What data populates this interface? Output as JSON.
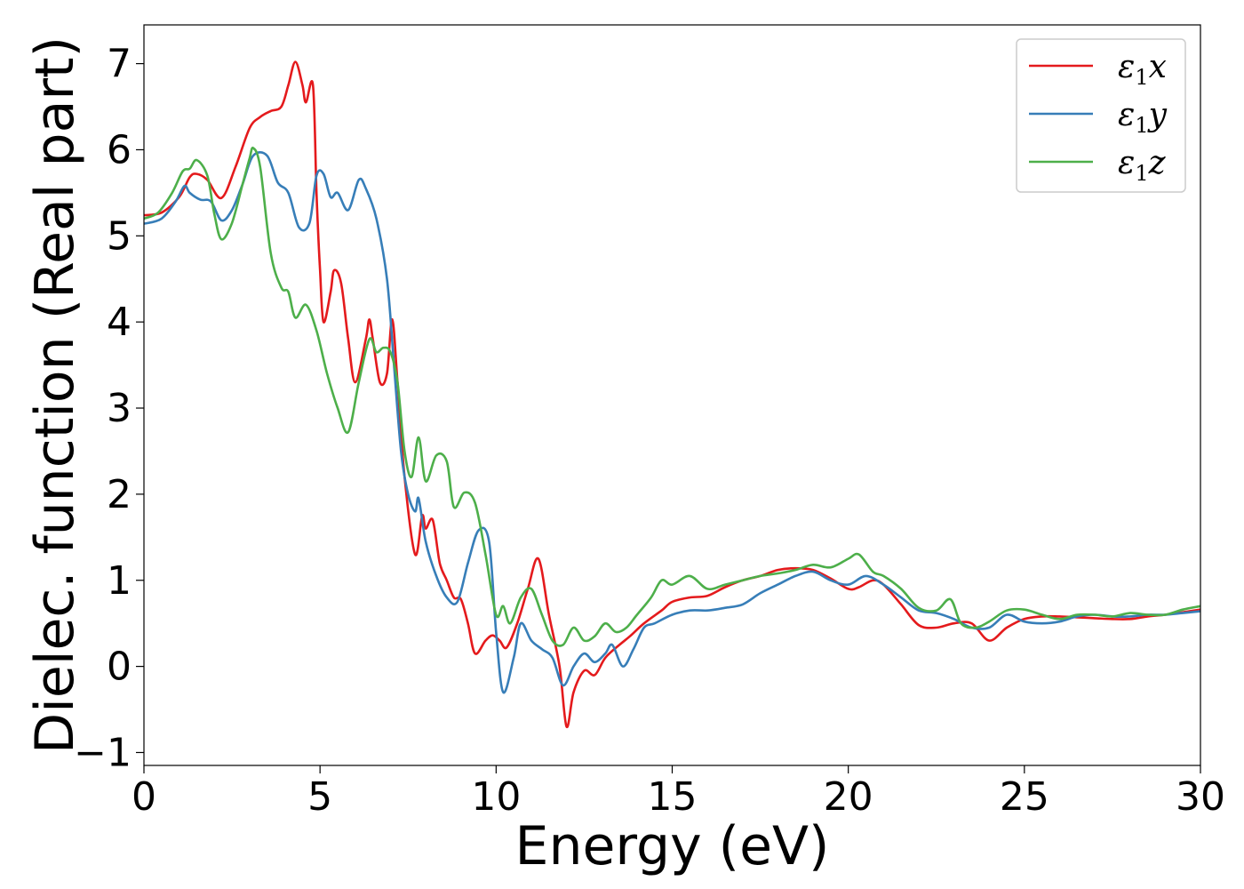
{
  "chart_data": {
    "type": "line",
    "xlabel": "Energy (eV)",
    "ylabel": "Dielec. function (Real part)",
    "xlim": [
      0,
      30
    ],
    "ylim": [
      -1.15,
      7.45
    ],
    "xticks": [
      0,
      5,
      10,
      15,
      20,
      25,
      30
    ],
    "xtick_labels": [
      "0",
      "5",
      "10",
      "15",
      "20",
      "25",
      "30"
    ],
    "yticks": [
      -1,
      0,
      1,
      2,
      3,
      4,
      5,
      6,
      7
    ],
    "ytick_labels": [
      "−1",
      "0",
      "1",
      "2",
      "3",
      "4",
      "5",
      "6",
      "7"
    ],
    "grid": false,
    "legend_position": "top-right",
    "series": [
      {
        "name": "ε1x",
        "symbol": "ε",
        "subscript": "1",
        "axis": "x",
        "color": "#e41a1c",
        "points": [
          [
            0,
            5.24
          ],
          [
            0.5,
            5.27
          ],
          [
            1.0,
            5.45
          ],
          [
            1.3,
            5.68
          ],
          [
            1.5,
            5.72
          ],
          [
            1.8,
            5.65
          ],
          [
            2.2,
            5.44
          ],
          [
            2.6,
            5.8
          ],
          [
            3.0,
            6.25
          ],
          [
            3.3,
            6.38
          ],
          [
            3.6,
            6.45
          ],
          [
            3.9,
            6.5
          ],
          [
            4.1,
            6.75
          ],
          [
            4.3,
            7.02
          ],
          [
            4.5,
            6.75
          ],
          [
            4.6,
            6.55
          ],
          [
            4.8,
            6.75
          ],
          [
            4.9,
            5.5
          ],
          [
            5.0,
            4.6
          ],
          [
            5.1,
            4.0
          ],
          [
            5.3,
            4.35
          ],
          [
            5.4,
            4.6
          ],
          [
            5.6,
            4.45
          ],
          [
            5.8,
            3.8
          ],
          [
            6.0,
            3.3
          ],
          [
            6.3,
            3.8
          ],
          [
            6.4,
            4.03
          ],
          [
            6.5,
            3.8
          ],
          [
            6.7,
            3.3
          ],
          [
            6.9,
            3.4
          ],
          [
            7.05,
            4.03
          ],
          [
            7.2,
            3.3
          ],
          [
            7.4,
            2.2
          ],
          [
            7.7,
            1.3
          ],
          [
            7.9,
            1.75
          ],
          [
            8.0,
            1.6
          ],
          [
            8.2,
            1.7
          ],
          [
            8.4,
            1.2
          ],
          [
            8.6,
            1.0
          ],
          [
            8.8,
            0.8
          ],
          [
            9.0,
            0.78
          ],
          [
            9.2,
            0.5
          ],
          [
            9.4,
            0.15
          ],
          [
            9.7,
            0.3
          ],
          [
            9.9,
            0.36
          ],
          [
            10.1,
            0.3
          ],
          [
            10.3,
            0.22
          ],
          [
            10.6,
            0.5
          ],
          [
            10.9,
            0.9
          ],
          [
            11.2,
            1.25
          ],
          [
            11.5,
            0.6
          ],
          [
            11.8,
            0.0
          ],
          [
            12.0,
            -0.7
          ],
          [
            12.2,
            -0.3
          ],
          [
            12.5,
            -0.05
          ],
          [
            12.8,
            -0.1
          ],
          [
            13.1,
            0.1
          ],
          [
            13.5,
            0.25
          ],
          [
            13.8,
            0.35
          ],
          [
            14.2,
            0.5
          ],
          [
            14.7,
            0.65
          ],
          [
            15.0,
            0.75
          ],
          [
            15.5,
            0.8
          ],
          [
            16.0,
            0.82
          ],
          [
            16.5,
            0.92
          ],
          [
            17.0,
            1.0
          ],
          [
            17.5,
            1.05
          ],
          [
            18.0,
            1.12
          ],
          [
            18.5,
            1.14
          ],
          [
            19.0,
            1.12
          ],
          [
            19.5,
            1.02
          ],
          [
            20.0,
            0.9
          ],
          [
            20.3,
            0.92
          ],
          [
            20.7,
            1.0
          ],
          [
            21.0,
            0.95
          ],
          [
            21.5,
            0.72
          ],
          [
            22.0,
            0.48
          ],
          [
            22.5,
            0.45
          ],
          [
            23.0,
            0.5
          ],
          [
            23.5,
            0.5
          ],
          [
            24.0,
            0.3
          ],
          [
            24.5,
            0.45
          ],
          [
            25.0,
            0.55
          ],
          [
            25.5,
            0.58
          ],
          [
            26.0,
            0.58
          ],
          [
            26.5,
            0.57
          ],
          [
            27.0,
            0.56
          ],
          [
            27.5,
            0.55
          ],
          [
            28.0,
            0.55
          ],
          [
            28.5,
            0.58
          ],
          [
            29.0,
            0.6
          ],
          [
            29.5,
            0.63
          ],
          [
            30.0,
            0.66
          ]
        ]
      },
      {
        "name": "ε1y",
        "symbol": "ε",
        "subscript": "1",
        "axis": "y",
        "color": "#377eb8",
        "points": [
          [
            0,
            5.14
          ],
          [
            0.5,
            5.2
          ],
          [
            0.9,
            5.4
          ],
          [
            1.15,
            5.58
          ],
          [
            1.3,
            5.5
          ],
          [
            1.6,
            5.42
          ],
          [
            1.9,
            5.4
          ],
          [
            2.2,
            5.18
          ],
          [
            2.5,
            5.3
          ],
          [
            2.8,
            5.6
          ],
          [
            3.1,
            5.93
          ],
          [
            3.5,
            5.93
          ],
          [
            3.8,
            5.62
          ],
          [
            4.1,
            5.5
          ],
          [
            4.4,
            5.1
          ],
          [
            4.7,
            5.15
          ],
          [
            4.9,
            5.7
          ],
          [
            5.1,
            5.72
          ],
          [
            5.3,
            5.45
          ],
          [
            5.5,
            5.5
          ],
          [
            5.8,
            5.3
          ],
          [
            6.1,
            5.65
          ],
          [
            6.3,
            5.55
          ],
          [
            6.6,
            5.2
          ],
          [
            6.9,
            4.5
          ],
          [
            7.1,
            3.5
          ],
          [
            7.3,
            2.5
          ],
          [
            7.5,
            2.0
          ],
          [
            7.7,
            1.8
          ],
          [
            7.8,
            1.95
          ],
          [
            8.0,
            1.45
          ],
          [
            8.3,
            1.05
          ],
          [
            8.6,
            0.8
          ],
          [
            8.9,
            0.75
          ],
          [
            9.2,
            1.2
          ],
          [
            9.5,
            1.58
          ],
          [
            9.8,
            1.45
          ],
          [
            10.0,
            0.4
          ],
          [
            10.2,
            -0.3
          ],
          [
            10.5,
            0.1
          ],
          [
            10.7,
            0.5
          ],
          [
            11.0,
            0.3
          ],
          [
            11.3,
            0.2
          ],
          [
            11.6,
            0.1
          ],
          [
            11.9,
            -0.22
          ],
          [
            12.2,
            0.0
          ],
          [
            12.5,
            0.15
          ],
          [
            12.8,
            0.05
          ],
          [
            13.1,
            0.15
          ],
          [
            13.3,
            0.25
          ],
          [
            13.6,
            0.0
          ],
          [
            13.9,
            0.2
          ],
          [
            14.2,
            0.45
          ],
          [
            14.5,
            0.5
          ],
          [
            15.0,
            0.6
          ],
          [
            15.5,
            0.65
          ],
          [
            16.0,
            0.65
          ],
          [
            16.5,
            0.68
          ],
          [
            17.0,
            0.72
          ],
          [
            17.5,
            0.85
          ],
          [
            18.0,
            0.95
          ],
          [
            18.5,
            1.05
          ],
          [
            19.0,
            1.1
          ],
          [
            19.5,
            1.0
          ],
          [
            20.0,
            0.95
          ],
          [
            20.5,
            1.05
          ],
          [
            21.0,
            0.95
          ],
          [
            21.5,
            0.8
          ],
          [
            22.0,
            0.65
          ],
          [
            22.5,
            0.62
          ],
          [
            23.0,
            0.55
          ],
          [
            23.5,
            0.45
          ],
          [
            24.0,
            0.45
          ],
          [
            24.5,
            0.6
          ],
          [
            25.0,
            0.52
          ],
          [
            25.5,
            0.5
          ],
          [
            26.0,
            0.52
          ],
          [
            26.5,
            0.58
          ],
          [
            27.0,
            0.6
          ],
          [
            27.5,
            0.58
          ],
          [
            28.0,
            0.58
          ],
          [
            28.5,
            0.6
          ],
          [
            29.0,
            0.6
          ],
          [
            29.5,
            0.62
          ],
          [
            30.0,
            0.64
          ]
        ]
      },
      {
        "name": "ε1z",
        "symbol": "ε",
        "subscript": "1",
        "axis": "z",
        "color": "#4daf4a",
        "points": [
          [
            0,
            5.2
          ],
          [
            0.4,
            5.27
          ],
          [
            0.8,
            5.5
          ],
          [
            1.1,
            5.75
          ],
          [
            1.3,
            5.78
          ],
          [
            1.5,
            5.88
          ],
          [
            1.8,
            5.7
          ],
          [
            2.0,
            5.25
          ],
          [
            2.2,
            4.96
          ],
          [
            2.5,
            5.15
          ],
          [
            2.8,
            5.6
          ],
          [
            3.0,
            5.9
          ],
          [
            3.1,
            6.02
          ],
          [
            3.3,
            5.8
          ],
          [
            3.6,
            4.8
          ],
          [
            3.9,
            4.4
          ],
          [
            4.1,
            4.35
          ],
          [
            4.3,
            4.05
          ],
          [
            4.6,
            4.2
          ],
          [
            4.9,
            3.9
          ],
          [
            5.2,
            3.4
          ],
          [
            5.5,
            3.0
          ],
          [
            5.8,
            2.72
          ],
          [
            6.1,
            3.3
          ],
          [
            6.4,
            3.8
          ],
          [
            6.6,
            3.65
          ],
          [
            6.8,
            3.7
          ],
          [
            7.0,
            3.65
          ],
          [
            7.2,
            3.3
          ],
          [
            7.4,
            2.5
          ],
          [
            7.6,
            2.2
          ],
          [
            7.8,
            2.66
          ],
          [
            8.0,
            2.15
          ],
          [
            8.3,
            2.45
          ],
          [
            8.6,
            2.38
          ],
          [
            8.8,
            1.85
          ],
          [
            9.1,
            2.02
          ],
          [
            9.4,
            1.9
          ],
          [
            9.7,
            1.3
          ],
          [
            10.0,
            0.6
          ],
          [
            10.2,
            0.7
          ],
          [
            10.4,
            0.5
          ],
          [
            10.7,
            0.8
          ],
          [
            11.0,
            0.9
          ],
          [
            11.3,
            0.6
          ],
          [
            11.6,
            0.3
          ],
          [
            11.9,
            0.25
          ],
          [
            12.2,
            0.45
          ],
          [
            12.5,
            0.3
          ],
          [
            12.8,
            0.35
          ],
          [
            13.1,
            0.5
          ],
          [
            13.4,
            0.4
          ],
          [
            13.7,
            0.45
          ],
          [
            14.0,
            0.6
          ],
          [
            14.4,
            0.8
          ],
          [
            14.7,
            1.0
          ],
          [
            15.0,
            0.95
          ],
          [
            15.5,
            1.05
          ],
          [
            16.0,
            0.9
          ],
          [
            16.5,
            0.95
          ],
          [
            17.0,
            1.0
          ],
          [
            17.5,
            1.05
          ],
          [
            18.0,
            1.08
          ],
          [
            18.5,
            1.12
          ],
          [
            19.0,
            1.18
          ],
          [
            19.5,
            1.15
          ],
          [
            20.0,
            1.25
          ],
          [
            20.3,
            1.3
          ],
          [
            20.7,
            1.1
          ],
          [
            21.0,
            1.05
          ],
          [
            21.5,
            0.9
          ],
          [
            22.0,
            0.68
          ],
          [
            22.5,
            0.65
          ],
          [
            22.9,
            0.78
          ],
          [
            23.2,
            0.5
          ],
          [
            23.6,
            0.45
          ],
          [
            24.0,
            0.52
          ],
          [
            24.5,
            0.65
          ],
          [
            25.0,
            0.66
          ],
          [
            25.5,
            0.6
          ],
          [
            26.0,
            0.55
          ],
          [
            26.5,
            0.6
          ],
          [
            27.0,
            0.6
          ],
          [
            27.5,
            0.58
          ],
          [
            28.0,
            0.62
          ],
          [
            28.5,
            0.6
          ],
          [
            29.0,
            0.6
          ],
          [
            29.5,
            0.66
          ],
          [
            30.0,
            0.7
          ]
        ]
      }
    ]
  }
}
